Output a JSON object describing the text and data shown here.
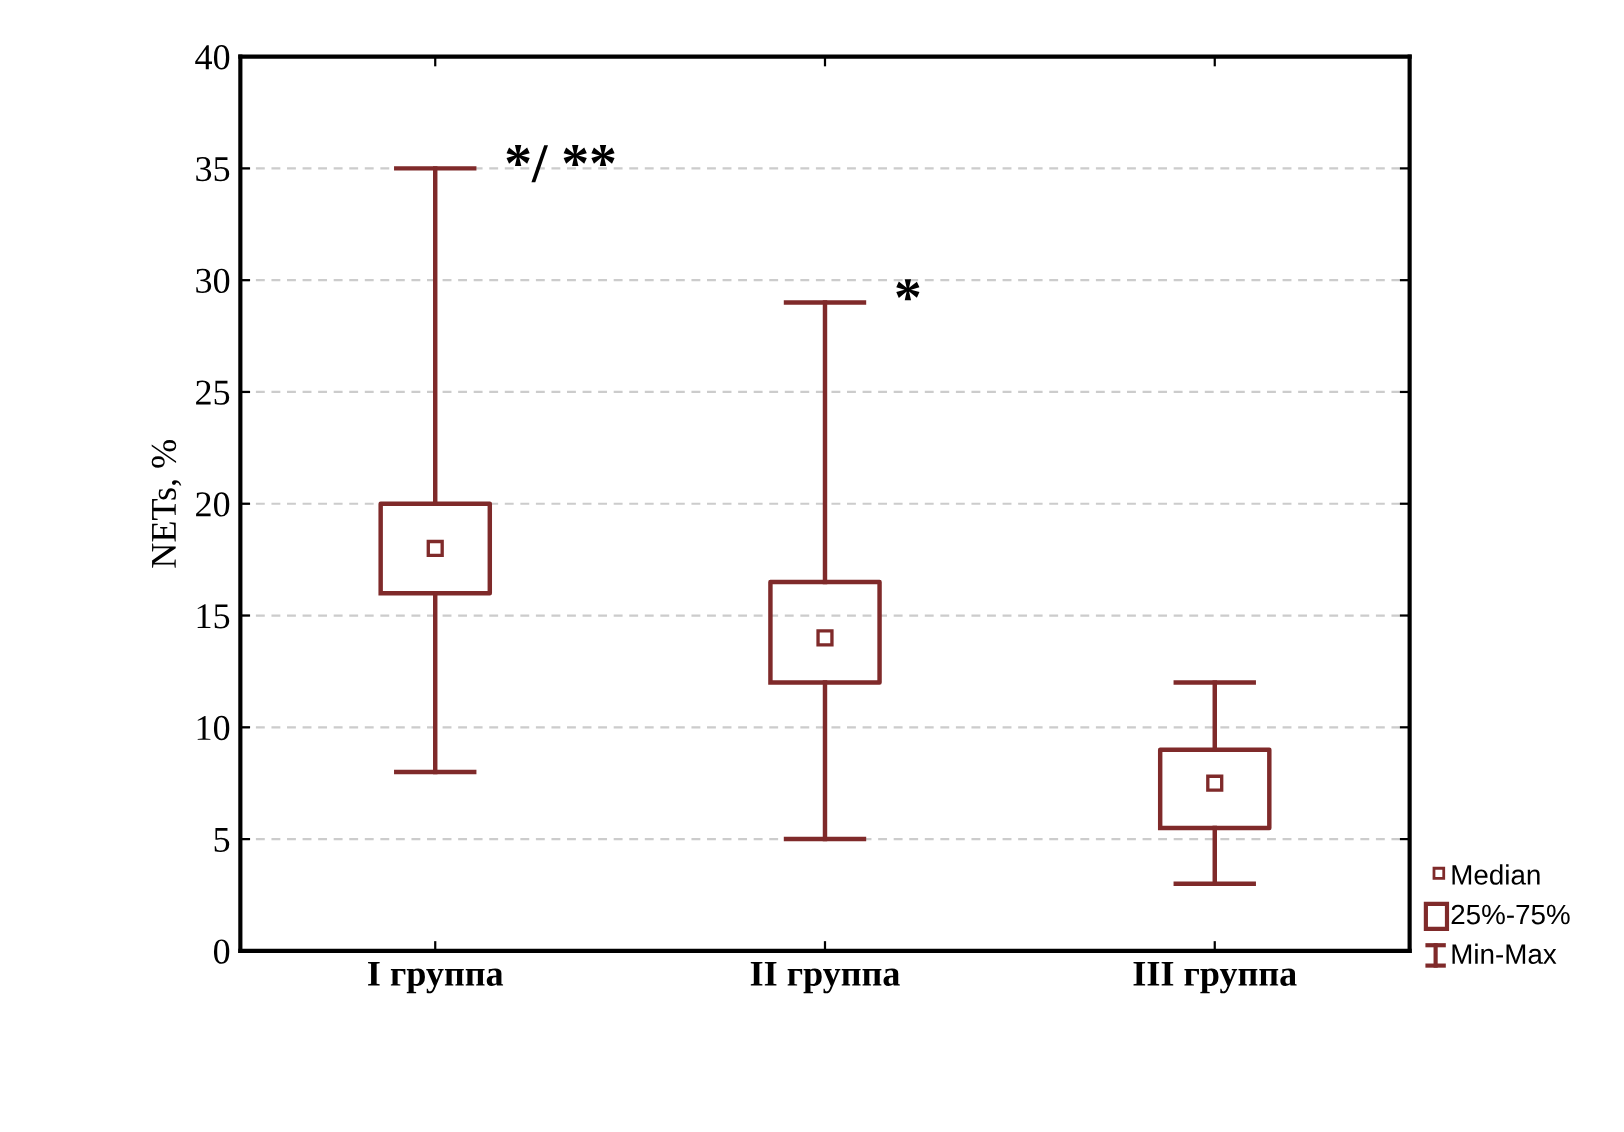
{
  "chart_data": {
    "type": "box",
    "ylabel": "NETs, %",
    "categories": [
      "I группа",
      "II группа",
      "III группа"
    ],
    "series": [
      {
        "color": "#7f2a2a",
        "boxes": [
          {
            "low": 8,
            "q1": 16,
            "median": 18,
            "q3": 20,
            "high": 35
          },
          {
            "low": 5,
            "q1": 12,
            "median": 14,
            "q3": 16.5,
            "high": 29
          },
          {
            "low": 3,
            "q1": 5.5,
            "median": 7.5,
            "q3": 9,
            "high": 12
          }
        ]
      }
    ],
    "ylim": [
      0,
      40
    ],
    "yticks": [
      0,
      5,
      10,
      15,
      20,
      25,
      30,
      35,
      40
    ],
    "grid": "y",
    "annotations": [
      {
        "text": "*/ **",
        "x": "I группа",
        "y": 35
      },
      {
        "text": "*",
        "x": "II группа",
        "y": 29
      },
      "Median",
      "25%-75%",
      "Min-Max"
    ]
  }
}
